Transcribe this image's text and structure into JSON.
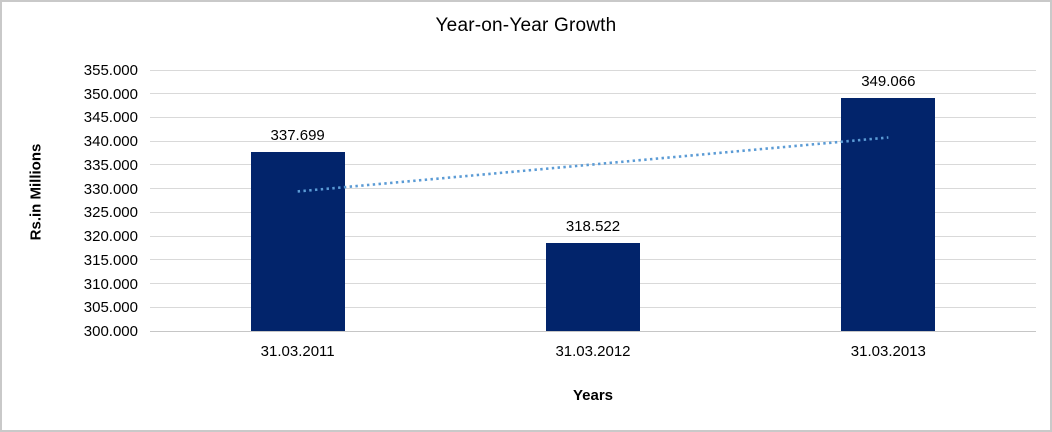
{
  "chart_data": {
    "type": "bar",
    "title": "Year-on-Year Growth",
    "categories": [
      "31.03.2011",
      "31.03.2012",
      "31.03.2013"
    ],
    "values": [
      337.699,
      318.522,
      349.066
    ],
    "data_labels": [
      "337.699",
      "318.522",
      "349.066"
    ],
    "xlabel": "Years",
    "ylabel": "Rs.in Millions",
    "ylim": [
      300,
      355
    ],
    "ytick_step": 5,
    "ytick_labels": [
      "355.000",
      "350.000",
      "345.000",
      "340.000",
      "335.000",
      "330.000",
      "325.000",
      "320.000",
      "315.000",
      "310.000",
      "305.000",
      "300.000"
    ],
    "grid": true,
    "legend_position": "none",
    "bar_color": "#02246B",
    "gridline_color": "#d9d9d9",
    "trendline": {
      "type": "linear",
      "style": "dotted",
      "color": "#5B9BD5",
      "start_value": 329.41,
      "end_value": 340.78
    }
  }
}
